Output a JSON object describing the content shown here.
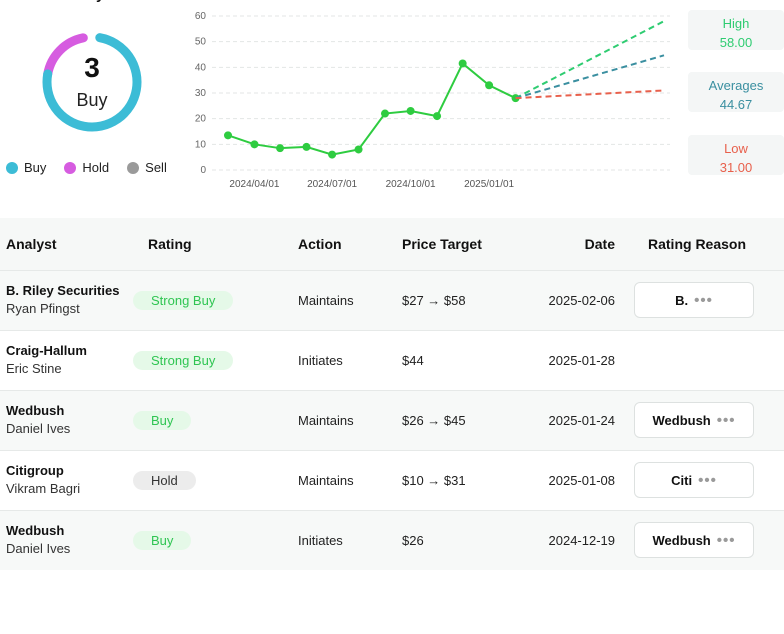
{
  "summary": {
    "header_fragment": "y",
    "consensus_count": "3",
    "consensus_label": "Buy",
    "legend": [
      {
        "label": "Buy",
        "color": "#3cbcd6"
      },
      {
        "label": "Hold",
        "color": "#d65ce0"
      },
      {
        "label": "Sell",
        "color": "#9a9a9a"
      }
    ],
    "ring_colors": {
      "buy": "#3cbcd6",
      "hold": "#d65ce0",
      "sell": "#9a9a9a"
    }
  },
  "chart_data": {
    "type": "line",
    "x_tick_labels": [
      "2024/04/01",
      "2024/07/01",
      "2024/10/01",
      "2025/01/01"
    ],
    "y_ticks": [
      0,
      10,
      20,
      30,
      40,
      50,
      60
    ],
    "ylim": [
      0,
      60
    ],
    "grid": true,
    "series": [
      {
        "color": "#2ecc40",
        "x": [
          "2024-03-01",
          "2024-04-01",
          "2024-05-01",
          "2024-06-01",
          "2024-07-01",
          "2024-08-01",
          "2024-09-01",
          "2024-10-01",
          "2024-11-01",
          "2024-12-01",
          "2025-01-01",
          "2025-02-01"
        ],
        "values": [
          13.5,
          10.0,
          8.5,
          9.0,
          6.0,
          8.0,
          22.0,
          23.0,
          21.0,
          41.5,
          33.0,
          28.0
        ]
      }
    ],
    "forecast": {
      "high": {
        "label": "High",
        "value": "58.00",
        "numeric": 58,
        "color": "#2ecc71"
      },
      "average": {
        "label": "Averages",
        "value": "44.67",
        "numeric": 44.67,
        "color": "#3a8fa0"
      },
      "low": {
        "label": "Low",
        "value": "31.00",
        "numeric": 31,
        "color": "#e8604c"
      }
    }
  },
  "table": {
    "headers": {
      "analyst": "Analyst",
      "rating": "Rating",
      "action": "Action",
      "price_target": "Price Target",
      "date": "Date",
      "reason": "Rating Reason"
    },
    "rows": [
      {
        "firm": "B. Riley Securities",
        "analyst": "Ryan Pfingst",
        "rating": "Strong Buy",
        "action": "Maintains",
        "target": "$27 → $58",
        "date": "2025-02-06",
        "reason": "B."
      },
      {
        "firm": "Craig-Hallum",
        "analyst": "Eric Stine",
        "rating": "Strong Buy",
        "action": "Initiates",
        "target": "$44",
        "date": "2025-01-28",
        "reason": ""
      },
      {
        "firm": "Wedbush",
        "analyst": "Daniel Ives",
        "rating": "Buy",
        "action": "Maintains",
        "target": "$26 → $45",
        "date": "2025-01-24",
        "reason": "Wedbush"
      },
      {
        "firm": "Citigroup",
        "analyst": "Vikram Bagri",
        "rating": "Hold",
        "action": "Maintains",
        "target": "$10 → $31",
        "date": "2025-01-08",
        "reason": "Citi"
      },
      {
        "firm": "Wedbush",
        "analyst": "Daniel Ives",
        "rating": "Buy",
        "action": "Initiates",
        "target": "$26",
        "date": "2024-12-19",
        "reason": "Wedbush"
      }
    ],
    "more_glyph": "•••"
  }
}
